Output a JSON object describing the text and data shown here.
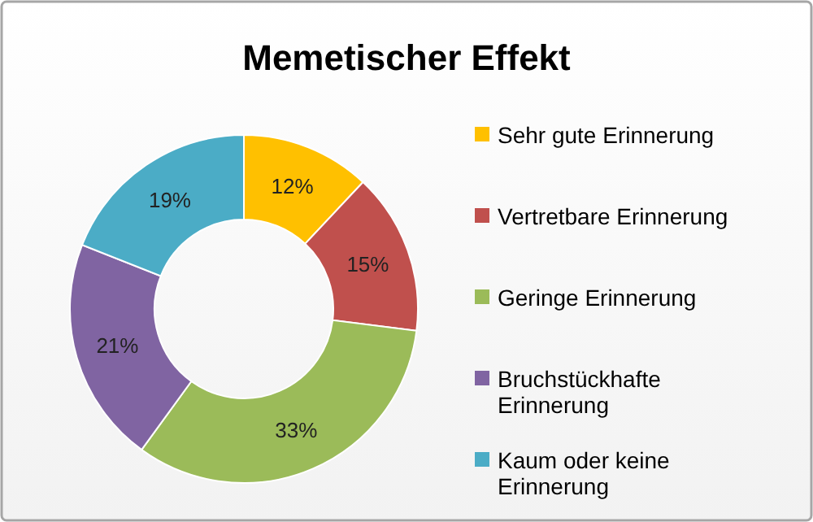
{
  "chart_data": {
    "type": "donut",
    "title": "Memetischer Effekt",
    "categories": [
      "Sehr gute Erinnerung",
      "Vertretbare Erinnerung",
      "Geringe Erinnerung",
      "Bruchstückhafte Erinnerung",
      "Kaum oder keine Erinnerung"
    ],
    "values": [
      12,
      15,
      33,
      21,
      19
    ],
    "colors": [
      "#ffc000",
      "#c0504d",
      "#9bbb59",
      "#8064a2",
      "#4bacc6"
    ],
    "value_labels": [
      "12%",
      "15%",
      "33%",
      "21%",
      "19%"
    ],
    "legend": "right"
  }
}
